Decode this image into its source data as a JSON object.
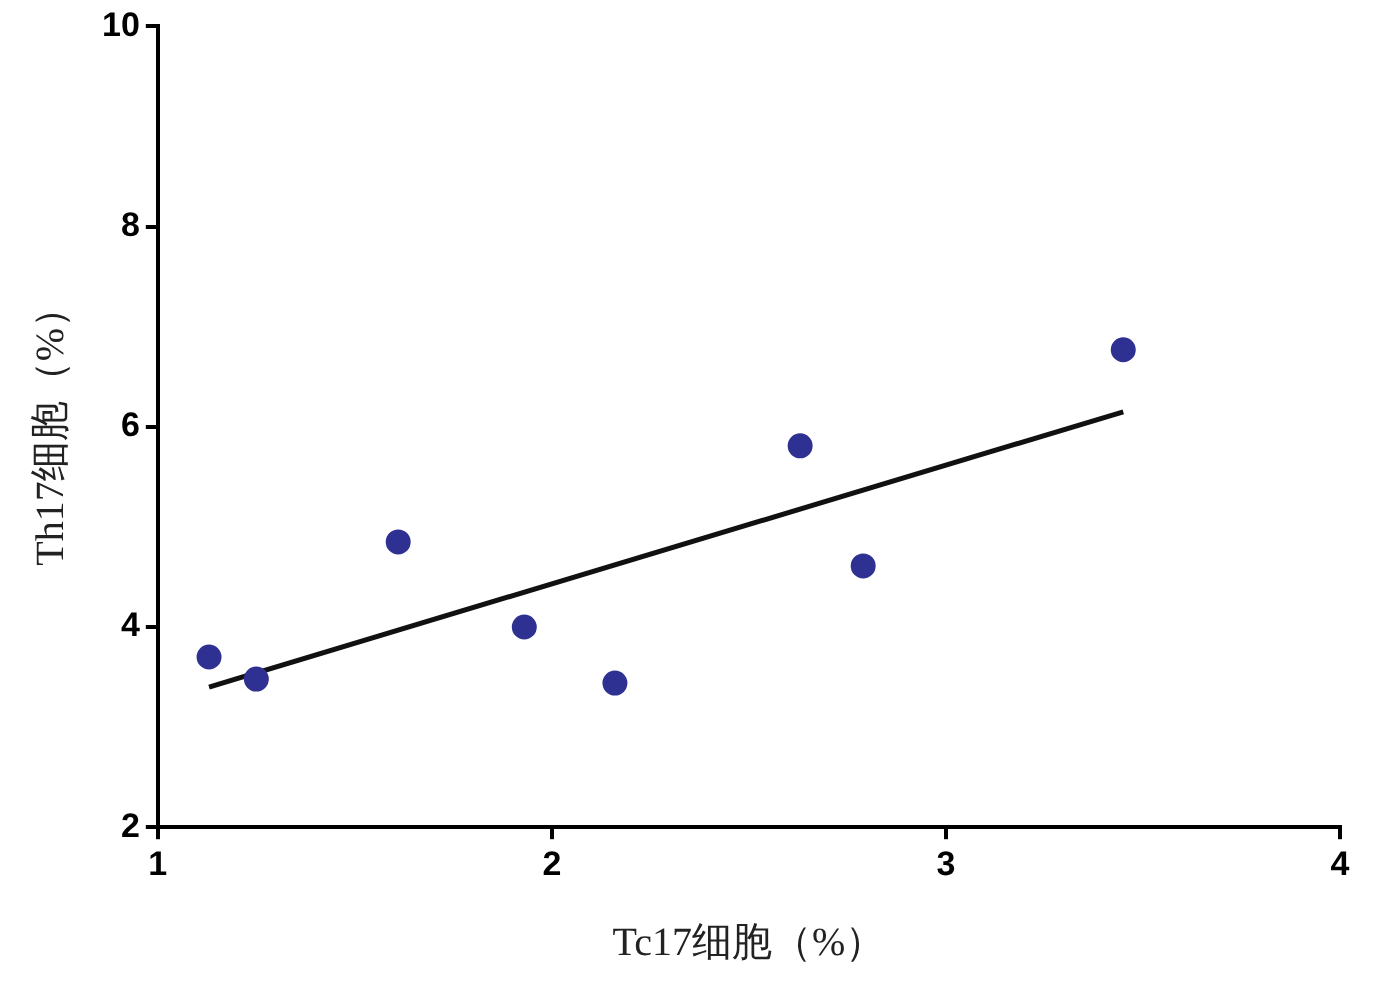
{
  "chart_data": {
    "type": "scatter",
    "xlabel": "Tc17细胞（%）",
    "ylabel": "Th17细胞（%）",
    "xlim": [
      1,
      4
    ],
    "ylim": [
      2,
      10
    ],
    "xticks": [
      1,
      2,
      3,
      4
    ],
    "yticks": [
      2,
      4,
      6,
      8,
      10
    ],
    "grid": false,
    "legend": false,
    "series": [
      {
        "type": "scatter",
        "color": "#2e3192",
        "marker": "circle",
        "x": [
          1.13,
          1.25,
          1.61,
          1.93,
          2.16,
          2.63,
          2.79,
          3.45
        ],
        "values": [
          3.7,
          3.48,
          4.85,
          4.0,
          3.44,
          5.81,
          4.61,
          6.77
        ]
      },
      {
        "type": "line",
        "color": "#111111",
        "marker": "none",
        "line_style": "solid",
        "x": [
          1.13,
          3.45
        ],
        "values": [
          3.4,
          6.15
        ]
      }
    ]
  }
}
